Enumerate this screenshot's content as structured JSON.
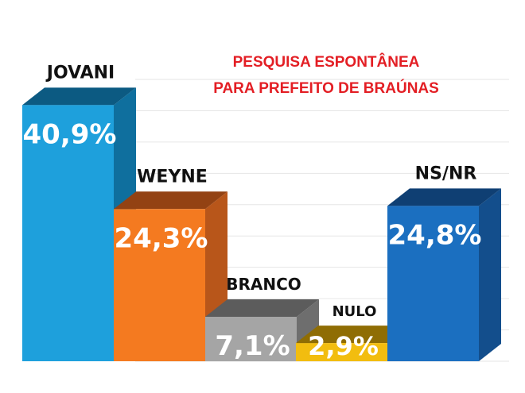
{
  "chart_data": {
    "type": "bar",
    "title_lines": [
      "PESQUISA ESPONTÂNEA",
      "PARA PREFEITO DE BRAÚNAS"
    ],
    "categories": [
      "JOVANI",
      "WEYNE",
      "BRANCO",
      "NULO",
      "NS/NR"
    ],
    "values": [
      40.9,
      24.3,
      7.1,
      2.9,
      24.8
    ],
    "value_labels": [
      "40,9%",
      "24,3%",
      "7,1%",
      "2,9%",
      "24,8%"
    ],
    "ylim": [
      0,
      45
    ],
    "grid": true,
    "legend": "none",
    "colors": {
      "title": "#e31e24",
      "bars": [
        "#1ea0dc",
        "#f47a20",
        "#a5a5a5",
        "#f2bd0f",
        "#1b6fc0"
      ],
      "sides": [
        "#0f6f9e",
        "#b8561a",
        "#6e6e6e",
        "#b28805",
        "#134e8c"
      ],
      "tops": [
        "#0c5a82",
        "#934213",
        "#5c5c5c",
        "#8f6d04",
        "#0f3f73"
      ]
    }
  }
}
